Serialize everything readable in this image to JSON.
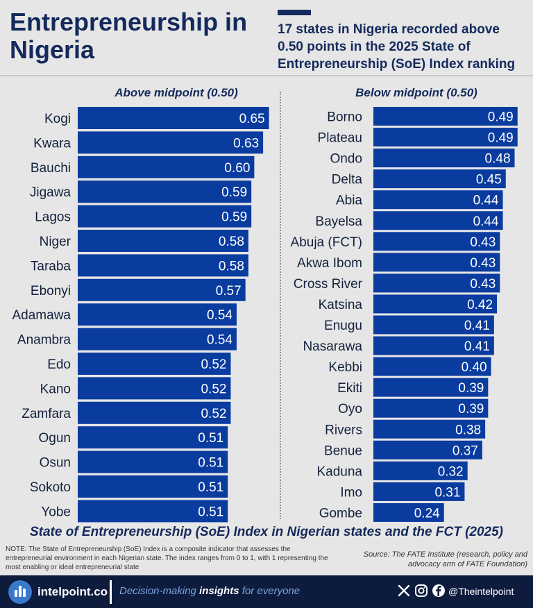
{
  "header": {
    "title": "Entrepreneurship in Nigeria",
    "headline": "17 states in Nigeria recorded above 0.50 points in the 2025 State of Entrepreneurship (SoE) Index ranking"
  },
  "colors": {
    "bar": "#0a3ca0",
    "dark": "#142a5c",
    "footer": "#0d1b3d"
  },
  "chart_data": {
    "type": "bar",
    "title": "State of Entrepreneurship (SoE) Index in Nigerian states and the FCT (2025)",
    "orientation": "horizontal",
    "panels": [
      {
        "title": "Above midpoint (0.50)",
        "categories": [
          "Kogi",
          "Kwara",
          "Bauchi",
          "Jigawa",
          "Lagos",
          "Niger",
          "Taraba",
          "Ebonyi",
          "Adamawa",
          "Anambra",
          "Edo",
          "Kano",
          "Zamfara",
          "Ogun",
          "Osun",
          "Sokoto",
          "Yobe"
        ],
        "values": [
          0.65,
          0.63,
          0.6,
          0.59,
          0.59,
          0.58,
          0.58,
          0.57,
          0.54,
          0.54,
          0.52,
          0.52,
          0.52,
          0.51,
          0.51,
          0.51,
          0.51
        ],
        "labels": [
          "0.65",
          "0.63",
          "0.60",
          "0.59",
          "0.59",
          "0.58",
          "0.58",
          "0.57",
          "0.54",
          "0.54",
          "0.52",
          "0.52",
          "0.52",
          "0.51",
          "0.51",
          "0.51",
          "0.51"
        ]
      },
      {
        "title": "Below midpoint (0.50)",
        "categories": [
          "Borno",
          "Plateau",
          "Ondo",
          "Delta",
          "Abia",
          "Bayelsa",
          "Abuja (FCT)",
          "Akwa Ibom",
          "Cross River",
          "Katsina",
          "Enugu",
          "Nasarawa",
          "Kebbi",
          "Ekiti",
          "Oyo",
          "Rivers",
          "Benue",
          "Kaduna",
          "Imo",
          "Gombe"
        ],
        "values": [
          0.49,
          0.49,
          0.48,
          0.45,
          0.44,
          0.44,
          0.43,
          0.43,
          0.43,
          0.42,
          0.41,
          0.41,
          0.4,
          0.39,
          0.39,
          0.38,
          0.37,
          0.32,
          0.31,
          0.24
        ],
        "labels": [
          "0.49",
          "0.49",
          "0.48",
          "0.45",
          "0.44",
          "0.44",
          "0.43",
          "0.43",
          "0.43",
          "0.42",
          "0.41",
          "0.41",
          "0.40",
          "0.39",
          "0.39",
          "0.38",
          "0.37",
          "0.32",
          "0.31",
          "0.24"
        ]
      }
    ]
  },
  "note": "NOTE: The State of Entrepreneurship (SoE) Index is a composite indicator that assesses the entrepreneurial environment in each Nigerian state. The index ranges from 0 to 1, with 1 representing the most enabling or ideal entrepreneurial state",
  "source": "Source: The FATE Institute (research, policy and advocacy arm of FATE Foundation)",
  "footer": {
    "brand": "intelpoint.co",
    "tagline_pre": "Decision-making ",
    "tagline_bold": "insights",
    "tagline_post": " for everyone",
    "handle": "@Theintelpoint",
    "icons": [
      "x-icon",
      "instagram-icon",
      "facebook-icon"
    ]
  }
}
